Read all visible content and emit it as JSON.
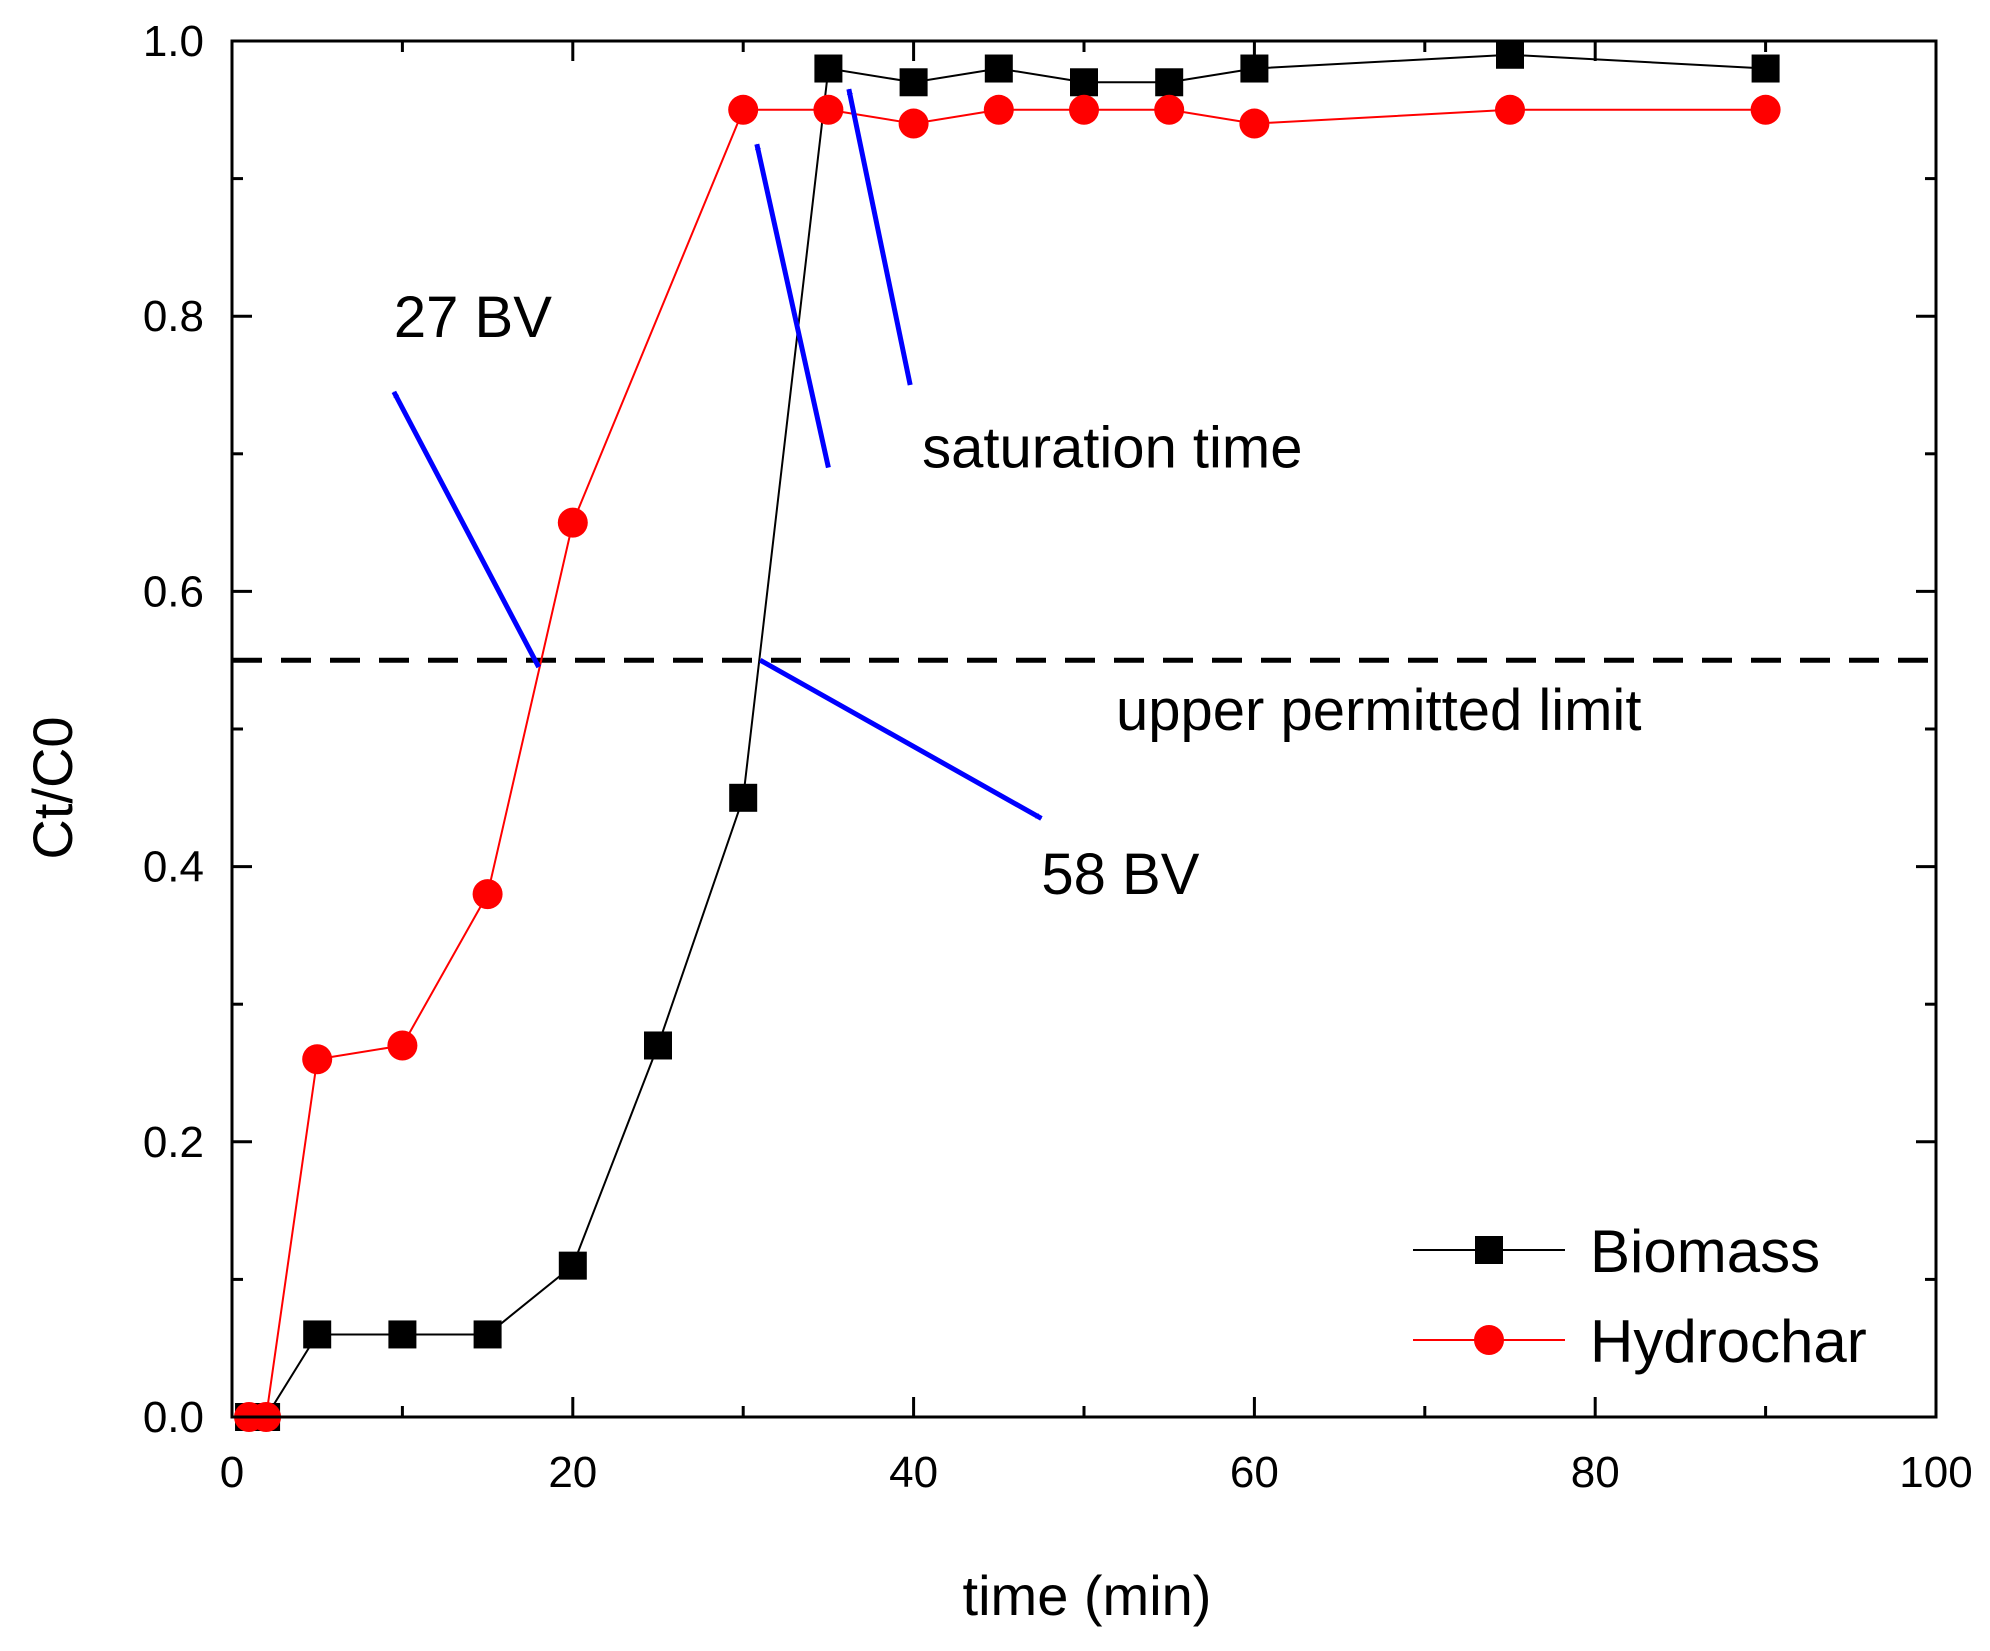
{
  "chart_data": {
    "type": "line",
    "xlabel": "time (min)",
    "ylabel": "Ct/C0",
    "xlim": [
      0,
      100
    ],
    "ylim": [
      0,
      1.0
    ],
    "x_ticks": [
      "0",
      "20",
      "40",
      "60",
      "80",
      "100"
    ],
    "y_ticks": [
      "0.0",
      "0.2",
      "0.4",
      "0.6",
      "0.8",
      "1.0"
    ],
    "series": [
      {
        "name": "Biomass",
        "color": "#000000",
        "marker": "square",
        "x": [
          1,
          2,
          5,
          10,
          15,
          20,
          25,
          30,
          35,
          40,
          45,
          50,
          55,
          60,
          75,
          90
        ],
        "values": [
          0,
          0,
          0.06,
          0.06,
          0.06,
          0.11,
          0.27,
          0.45,
          0.98,
          0.97,
          0.98,
          0.97,
          0.97,
          0.98,
          0.99,
          0.98
        ]
      },
      {
        "name": "Hydrochar",
        "color": "#ff0000",
        "marker": "circle",
        "x": [
          1,
          2,
          5,
          10,
          15,
          20,
          30,
          35,
          40,
          45,
          50,
          55,
          60,
          75,
          90
        ],
        "values": [
          0,
          0,
          0.26,
          0.27,
          0.38,
          0.65,
          0.95,
          0.95,
          0.94,
          0.95,
          0.95,
          0.95,
          0.94,
          0.95,
          0.95
        ]
      }
    ],
    "reference_line": {
      "label": "upper permitted limit",
      "y": 0.55,
      "style": "dashed"
    },
    "annotations": [
      {
        "name": "annotation-27bv",
        "text": "27 BV",
        "at": [
          9.5,
          0.785
        ],
        "arrow_from": [
          18,
          0.545
        ],
        "arrow_to": [
          9.5,
          0.745
        ]
      },
      {
        "name": "annotation-58bv",
        "text": "58 BV",
        "at": [
          47.5,
          0.38
        ],
        "arrow_from": [
          31,
          0.55
        ],
        "arrow_to": [
          47.5,
          0.435
        ]
      },
      {
        "name": "annotation-saturation-time",
        "text": "saturation time",
        "at": [
          40.5,
          0.69
        ],
        "arrows": [
          {
            "from": [
              35,
              0.69
            ],
            "to": [
              30.8,
              0.925
            ]
          },
          {
            "from": [
              39.8,
              0.75
            ],
            "to": [
              36.2,
              0.965
            ]
          }
        ]
      }
    ],
    "annotation_color": "#0000ff",
    "legend": {
      "position": "bottom-right"
    },
    "grid": false
  }
}
